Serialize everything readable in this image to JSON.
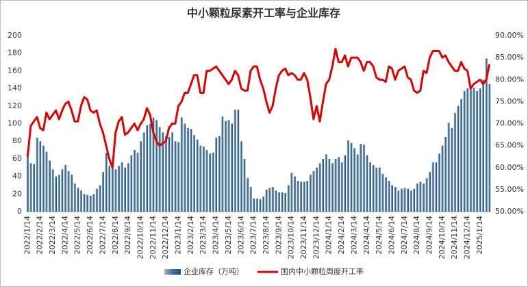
{
  "chart_data": {
    "type": "bar_line",
    "title": "中小颗粒尿素开工率与企业库存",
    "categories": [
      "2022/1/14",
      null,
      null,
      null,
      "2022/2/14",
      null,
      null,
      null,
      "2022/3/14",
      null,
      null,
      null,
      "2022/4/14",
      null,
      null,
      null,
      "2022/5/14",
      null,
      null,
      null,
      "2022/6/14",
      null,
      null,
      null,
      "2022/7/14",
      null,
      null,
      null,
      "2022/8/14",
      null,
      null,
      null,
      "2022/9/14",
      null,
      null,
      null,
      "2022/10/14",
      null,
      null,
      null,
      "2022/11/14",
      null,
      null,
      null,
      "2022/12/14",
      null,
      null,
      null,
      "2023/1/14",
      null,
      null,
      null,
      "2023/2/14",
      null,
      null,
      null,
      "2023/3/14",
      null,
      null,
      null,
      "2023/4/14",
      null,
      null,
      null,
      "2023/5/14",
      null,
      null,
      null,
      "2023/6/14",
      null,
      null,
      null,
      "2023/7/14",
      null,
      null,
      null,
      "2023/8/14",
      null,
      null,
      null,
      "2023/9/14",
      null,
      null,
      null,
      "2023/10/14",
      null,
      null,
      null,
      "2023/11/14",
      null,
      null,
      null,
      "2023/12/14",
      null,
      null,
      null,
      "2024/1/14",
      null,
      null,
      null,
      "2024/2/14",
      null,
      null,
      null,
      "2024/3/14",
      null,
      null,
      null,
      "2024/4/14",
      null,
      null,
      null,
      "2024/5/14",
      null,
      null,
      null,
      "2024/6/14",
      null,
      null,
      null,
      "2024/7/14",
      null,
      null,
      null,
      "2024/8/14",
      null,
      null,
      null,
      "2024/9/14",
      null,
      null,
      null,
      "2024/10/14",
      null,
      null,
      null,
      "2024/11/14",
      null,
      null,
      null,
      "2024/12/14",
      null,
      null,
      null,
      "2025/1/14",
      null,
      null,
      null
    ],
    "series": [
      {
        "name": "企业库存（万吨）",
        "color": "#3f6fa0",
        "axis": "y",
        "values": [
          64,
          55,
          54,
          84,
          80,
          75,
          68,
          58,
          48,
          40,
          42,
          48,
          53,
          46,
          42,
          32,
          27,
          24,
          20,
          19,
          18,
          20,
          26,
          30,
          45,
          67,
          52,
          50,
          48,
          52,
          56,
          50,
          55,
          64,
          70,
          67,
          80,
          90,
          98,
          100,
          107,
          104,
          96,
          90,
          86,
          85,
          90,
          80,
          79,
          107,
          100,
          95,
          94,
          87,
          82,
          75,
          74,
          70,
          66,
          67,
          84,
          86,
          108,
          103,
          104,
          100,
          116,
          116,
          80,
          60,
          38,
          28,
          15,
          15,
          14,
          17,
          25,
          27,
          28,
          24,
          22,
          22,
          21,
          30,
          44,
          40,
          35,
          34,
          34,
          35,
          42,
          46,
          50,
          55,
          60,
          65,
          60,
          55,
          60,
          62,
          56,
          64,
          81,
          78,
          72,
          65,
          77,
          76,
          64,
          56,
          53,
          50,
          50,
          43,
          39,
          35,
          30,
          28,
          24,
          26,
          27,
          26,
          24,
          26,
          32,
          34,
          32,
          38,
          45,
          56,
          56,
          66,
          75,
          85,
          101,
          95,
          112,
          120,
          128,
          137,
          140,
          142,
          141,
          137,
          140,
          150,
          174,
          145
        ]
      },
      {
        "name": "国内中小颗粒周度开工率",
        "color": "#e00000",
        "axis": "y2",
        "values": [
          62.5,
          69.5,
          70.5,
          71.5,
          69,
          68.5,
          72.5,
          71,
          72,
          73,
          71,
          73,
          74.5,
          75,
          73,
          70.5,
          70.5,
          74,
          76,
          75.5,
          73,
          72.5,
          73,
          70,
          68,
          65,
          62,
          60,
          68,
          70.5,
          71.5,
          67.5,
          68,
          69,
          70,
          68.5,
          70,
          71,
          73.5,
          72,
          68,
          66,
          65,
          65.5,
          66,
          69,
          70,
          70,
          74,
          75,
          77,
          77,
          79,
          81,
          81,
          77,
          77,
          82,
          82,
          82.5,
          83,
          82,
          81,
          80,
          79,
          80,
          82,
          81,
          78,
          77.5,
          77.5,
          82,
          83,
          83,
          80,
          78,
          75,
          72.5,
          74,
          78,
          81,
          82,
          82.5,
          81,
          81.5,
          81,
          80,
          80,
          81.5,
          80,
          76,
          71,
          74,
          70.5,
          75,
          79,
          80,
          83,
          87,
          84,
          84,
          85.5,
          83,
          85,
          85,
          85,
          84,
          82,
          84,
          84,
          83,
          80.5,
          80,
          80,
          79.5,
          83,
          82.5,
          80,
          82,
          82.5,
          83,
          80.5,
          80,
          77.5,
          77,
          77.5,
          82,
          81.5,
          85,
          86.5,
          86.5,
          86.5,
          85,
          85.5,
          84,
          83,
          82,
          82,
          84,
          82.5,
          82,
          78,
          79,
          79.5,
          80,
          79,
          80,
          83.5
        ]
      }
    ],
    "ylim": [
      0,
      200
    ],
    "yticks": [
      0,
      20,
      40,
      60,
      80,
      100,
      120,
      140,
      160,
      180,
      200
    ],
    "y2lim": [
      50,
      90
    ],
    "y2ticks": [
      {
        "value": 50,
        "label": "50.00%"
      },
      {
        "value": 55,
        "label": "55.00%"
      },
      {
        "value": 60,
        "label": "60.00%"
      },
      {
        "value": 65,
        "label": "65.00%"
      },
      {
        "value": 70,
        "label": "70.00%"
      },
      {
        "value": 75,
        "label": "75.00%"
      },
      {
        "value": 80,
        "label": "80.00%"
      },
      {
        "value": 85,
        "label": "85.00%"
      },
      {
        "value": 90,
        "label": "90.00%"
      }
    ],
    "legend": "bottom"
  }
}
